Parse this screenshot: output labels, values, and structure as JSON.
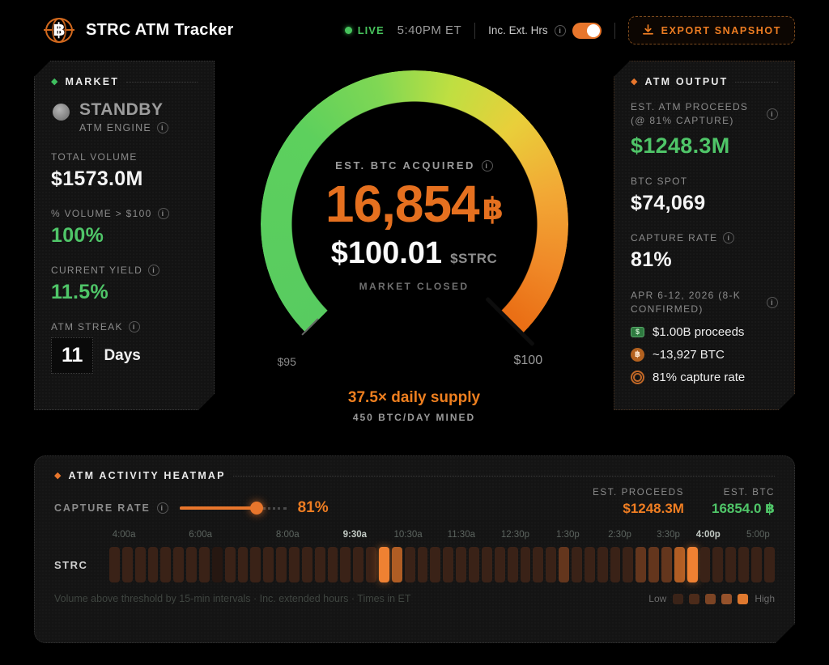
{
  "palette": {
    "orange": "#ed7c27",
    "green": "#4fc568",
    "live_green": "#47c35c"
  },
  "header": {
    "title": "STRC ATM Tracker",
    "live_label": "LIVE",
    "time": "5:40PM ET",
    "ext_hours_label": "Inc. Ext. Hrs",
    "export_label": "EXPORT SNAPSHOT",
    "logo_glyph": "฿"
  },
  "market": {
    "section_title": "MARKET",
    "status": {
      "value": "STANDBY",
      "label": "ATM ENGINE"
    },
    "metrics": [
      {
        "label": "TOTAL VOLUME",
        "value": "$1573.0M"
      },
      {
        "label": "% VOLUME > $100",
        "value": "100%"
      },
      {
        "label": "CURRENT YIELD",
        "value": "11.5%"
      }
    ],
    "streak": {
      "label": "ATM STREAK",
      "value": "11",
      "unit": "Days"
    }
  },
  "gauge": {
    "label": "EST. BTC ACQUIRED",
    "btc_value": "16,854",
    "btc_symbol": "฿",
    "price": "$100.01",
    "ticker": "$STRC",
    "market_status": "MARKET CLOSED",
    "scale_min": "$95",
    "scale_max": "$100",
    "supply_multiple": "37.5× daily supply",
    "supply_note": "450 BTC/DAY MINED"
  },
  "atm_output": {
    "section_title": "ATM OUTPUT",
    "proceeds": {
      "label": "EST. ATM PROCEEDS (@ 81% CAPTURE)",
      "value": "$1248.3M"
    },
    "btc_spot": {
      "label": "BTC SPOT",
      "value": "$74,069"
    },
    "capture_rate": {
      "label": "CAPTURE RATE",
      "value": "81%"
    },
    "confirmed": {
      "label": "APR 6-12, 2026 (8-K CONFIRMED)",
      "rows": [
        {
          "icon": "money-icon",
          "text": "$1.00B proceeds"
        },
        {
          "icon": "bitcoin-icon",
          "text": "~13,927 BTC"
        },
        {
          "icon": "target-icon",
          "text": "81% capture rate"
        }
      ]
    }
  },
  "heatmap": {
    "section_title": "ATM ACTIVITY HEATMAP",
    "slider": {
      "label": "CAPTURE RATE",
      "value": "81%",
      "fill_pct": 72
    },
    "est_proceeds": {
      "label": "EST. PROCEEDS",
      "value": "$1248.3M"
    },
    "est_btc": {
      "label": "EST. BTC",
      "value": "16854.0 ฿"
    },
    "row_label": "STRC",
    "footnote": "Volume above threshold by 15-min intervals · Inc. extended hours · Times in ET",
    "legend": {
      "low": "Low",
      "high": "High"
    },
    "time_labels": [
      {
        "t": "4:00a",
        "p": 2.2,
        "strong": false
      },
      {
        "t": "6:00a",
        "p": 13.7,
        "strong": false
      },
      {
        "t": "8:00a",
        "p": 26.8,
        "strong": false
      },
      {
        "t": "9:30a",
        "p": 36.9,
        "strong": true
      },
      {
        "t": "10:30a",
        "p": 44.9,
        "strong": false
      },
      {
        "t": "11:30a",
        "p": 52.9,
        "strong": false
      },
      {
        "t": "12:30p",
        "p": 61.0,
        "strong": false
      },
      {
        "t": "1:30p",
        "p": 68.9,
        "strong": false
      },
      {
        "t": "2:30p",
        "p": 76.7,
        "strong": false
      },
      {
        "t": "3:30p",
        "p": 84.0,
        "strong": false
      },
      {
        "t": "4:00p",
        "p": 90.0,
        "strong": true
      },
      {
        "t": "5:00p",
        "p": 97.5,
        "strong": false
      }
    ],
    "cell_colors": [
      "#261711",
      "#3a2217",
      "#64361d",
      "#b05d24",
      "#ef8132"
    ],
    "cells": [
      1,
      1,
      1,
      1,
      1,
      1,
      1,
      1,
      0,
      1,
      1,
      1,
      1,
      1,
      1,
      1,
      1,
      1,
      1,
      1,
      1,
      4,
      3,
      1,
      1,
      1,
      1,
      1,
      1,
      1,
      1,
      1,
      1,
      1,
      1,
      2,
      1,
      1,
      1,
      1,
      1,
      2,
      2,
      2,
      3,
      4,
      1,
      1,
      1,
      1,
      1,
      1
    ]
  }
}
